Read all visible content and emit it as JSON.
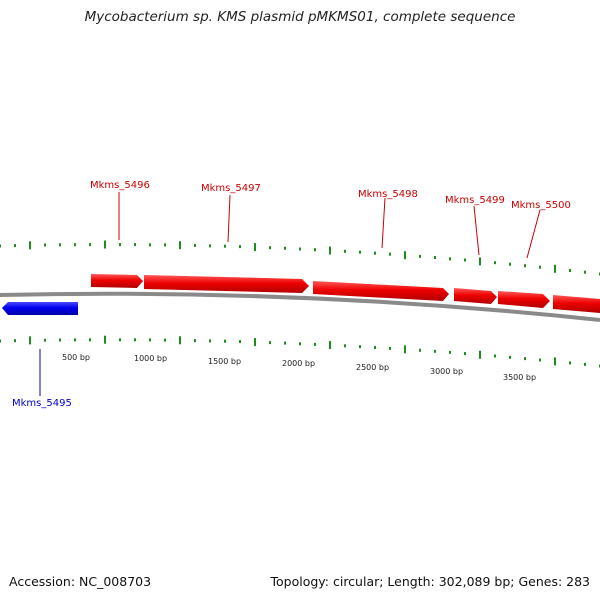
{
  "title": "Mycobacterium sp. KMS plasmid pMKMS01, complete sequence",
  "footer": {
    "accession": "Accession: NC_008703",
    "stats": "Topology: circular; Length: 302,089 bp; Genes: 283"
  },
  "colors": {
    "forward_gene": "#ee0000",
    "reverse_gene": "#0000ee",
    "backbone": "#8a8a8a",
    "tick_marks": "#1e8c1e",
    "forward_label": "#cc0000",
    "reverse_label": "#0000cc"
  },
  "scale_labels": [
    "500 bp",
    "1000 bp",
    "1500 bp",
    "2000 bp",
    "2500 bp",
    "3000 bp",
    "3500 bp"
  ],
  "genes": [
    {
      "name": "Mkms_5495",
      "strand": "reverse"
    },
    {
      "name": "Mkms_5496",
      "strand": "forward"
    },
    {
      "name": "Mkms_5497",
      "strand": "forward"
    },
    {
      "name": "Mkms_5498",
      "strand": "forward"
    },
    {
      "name": "Mkms_5499",
      "strand": "forward"
    },
    {
      "name": "Mkms_5500",
      "strand": "forward"
    }
  ]
}
